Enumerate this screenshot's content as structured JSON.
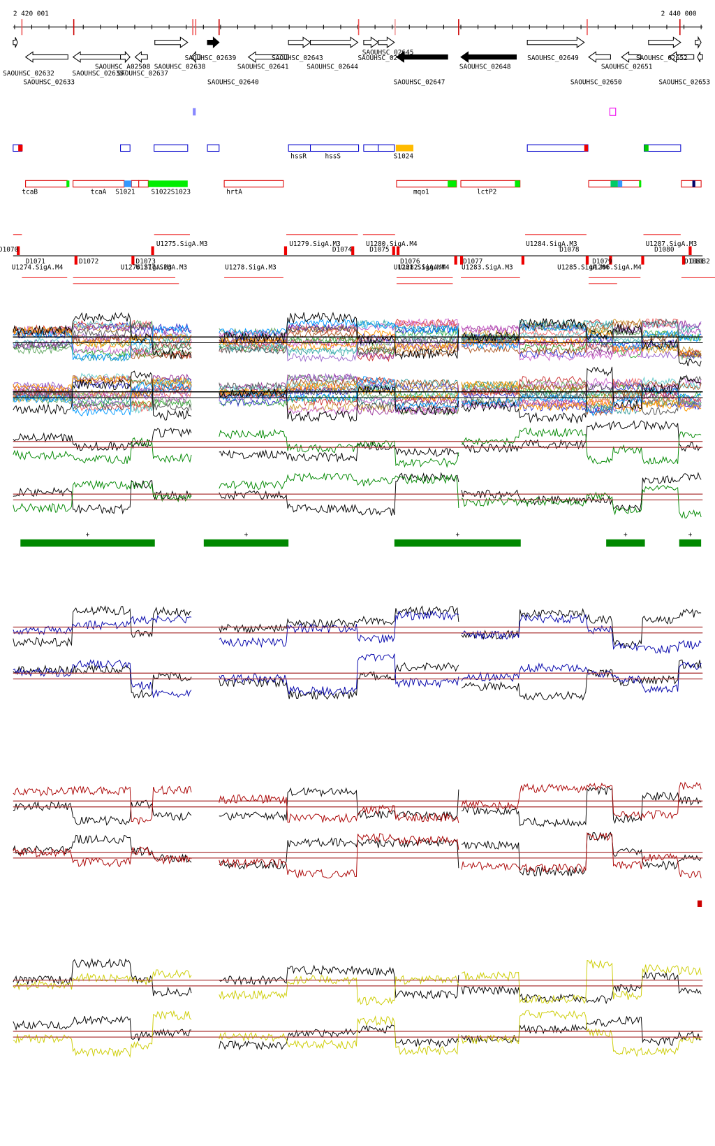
{
  "ruler": {
    "start": "2 420 001",
    "end": "2 440 000"
  },
  "genes": [
    "SAOUHSC_02632",
    "SAOUHSC_02633",
    "SAOUHSC_02635",
    "SAOUHSC_A02508",
    "SAOUHSC_02637",
    "SAOUHSC_02638",
    "SAOUHSC_02639",
    "SAOUHSC_02640",
    "SAOUHSC_02641",
    "SAOUHSC_02643",
    "SAOUHSC_02644",
    "SAOUHSC_02645",
    "SAOUHSC_02",
    "SAOUHSC_02647",
    "SAOUHSC_02648",
    "SAOUHSC_02649",
    "SAOUHSC_02650",
    "SAOUHSC_02651",
    "SAOUHSC_02652",
    "SAOUHSC_02653"
  ],
  "features": [
    "hssR",
    "hssS",
    "S1024",
    "tcaB",
    "tcaA",
    "S1021",
    "S1022",
    "S1023",
    "hrtA",
    "mqo1",
    "lctP2"
  ],
  "regulatory": [
    "D1070",
    "U1275.SigA.M3",
    "U1279.SigA.M3",
    "D1074",
    "U1280.SigA.M4",
    "D1075",
    "U1284.SigA.M3",
    "D1078",
    "U1287.SigA.M3",
    "D1080",
    "D1071",
    "U1274.SigA.M4",
    "D1072",
    "D1073",
    "U1276.SigA.M3",
    "U1277.SigA.M3",
    "U1278.SigA.M3",
    "D1076",
    "U1281.SigA.M4",
    "U1282.SigA.M4",
    "D1077",
    "U1283.SigA.M3",
    "U1285.SigA.M4",
    "U1286.SigA.M4",
    "D1079",
    "D1081",
    "D1082"
  ],
  "markers": [
    "+",
    "+",
    "+",
    "+",
    "+"
  ]
}
